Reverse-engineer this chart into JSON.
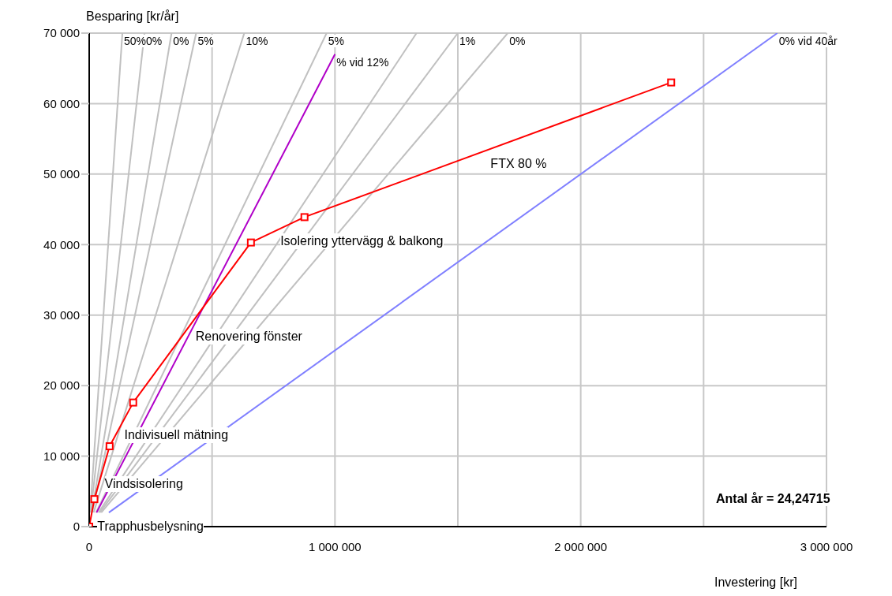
{
  "chart_data": {
    "type": "line",
    "xlabel": "Investering [kr]",
    "ylabel": "Besparing [kr/år]",
    "xlim": [
      0,
      3000000
    ],
    "ylim": [
      0,
      70000
    ],
    "xticks": [
      0,
      {
        "value": 500000,
        "label": null
      },
      {
        "value": 1000000,
        "label": "1 000 000"
      },
      {
        "value": 1500000,
        "label": null
      },
      {
        "value": 2000000,
        "label": "2 000 000"
      },
      {
        "value": 2500000,
        "label": null
      },
      {
        "value": 3000000,
        "label": "3 000 000"
      }
    ],
    "yticks": [
      0,
      {
        "value": 10000,
        "label": "10 000"
      },
      {
        "value": 20000,
        "label": "20 000"
      },
      {
        "value": 30000,
        "label": "30 000"
      },
      {
        "value": 40000,
        "label": "40 000"
      },
      {
        "value": 50000,
        "label": "50 000"
      },
      {
        "value": 60000,
        "label": "60 000"
      },
      {
        "value": 70000,
        "label": "70 000"
      }
    ],
    "grid": true,
    "series": [
      {
        "name": "50%",
        "color": "#c0c0c0",
        "x": [
          4000,
          135000
        ],
        "values": [
          2000,
          70000
        ]
      },
      {
        "name": "0%",
        "color": "#c0c0c0",
        "x": [
          6000,
          225000
        ],
        "values": [
          2000,
          70000
        ]
      },
      {
        "name": "0%",
        "color": "#c0c0c0",
        "x": [
          10000,
          335000
        ],
        "values": [
          2000,
          70000
        ]
      },
      {
        "name": "5%",
        "color": "#c0c0c0",
        "x": [
          12000,
          435000
        ],
        "values": [
          2000,
          70000
        ]
      },
      {
        "name": "10%",
        "color": "#c0c0c0",
        "x": [
          18000,
          631000
        ],
        "values": [
          2000,
          70000
        ]
      },
      {
        "name": "5%",
        "color": "#c0c0c0",
        "x": [
          28000,
          966000
        ],
        "values": [
          2000,
          70000
        ]
      },
      {
        "color": "#c0c0c0",
        "x": [
          38000,
          1332000
        ],
        "values": [
          2000,
          70000
        ]
      },
      {
        "name": "1%",
        "color": "#c0c0c0",
        "x": [
          43000,
          1500000
        ],
        "values": [
          2000,
          70000
        ]
      },
      {
        "name": "0%",
        "color": "#c0c0c0",
        "x": [
          49000,
          1703000
        ],
        "values": [
          2000,
          70000
        ]
      },
      {
        "name": "% vid 12%",
        "color": "#b000c8",
        "x": [
          30000,
          1000000
        ],
        "values": [
          2000,
          67000
        ]
      },
      {
        "name": "0% vid 40år",
        "color": "#8080ff",
        "x": [
          80000,
          2800000
        ],
        "values": [
          2000,
          70000
        ]
      },
      {
        "color": "#ff0000",
        "marker": "square",
        "x": [
          0,
          21000,
          83000,
          179000,
          658000,
          876000,
          2368000
        ],
        "values": [
          0,
          3900,
          11400,
          17600,
          40300,
          43900,
          63000
        ]
      }
    ],
    "annotations": [
      {
        "text": "Trapphusbelysning",
        "x": 20000,
        "y": 0
      },
      {
        "text": "Vindsisolering",
        "x": 50000,
        "y": 6000
      },
      {
        "text": "Indivisuell mätning",
        "x": 130000,
        "y": 13000
      },
      {
        "text": "Renovering fönster",
        "x": 420000,
        "y": 27000
      },
      {
        "text": "Isolering yttervägg & balkong",
        "x": 765000,
        "y": 40500
      },
      {
        "text": "FTX 80 %",
        "x": 1620000,
        "y": 53400
      },
      "Antal år = 24,24715"
    ]
  }
}
